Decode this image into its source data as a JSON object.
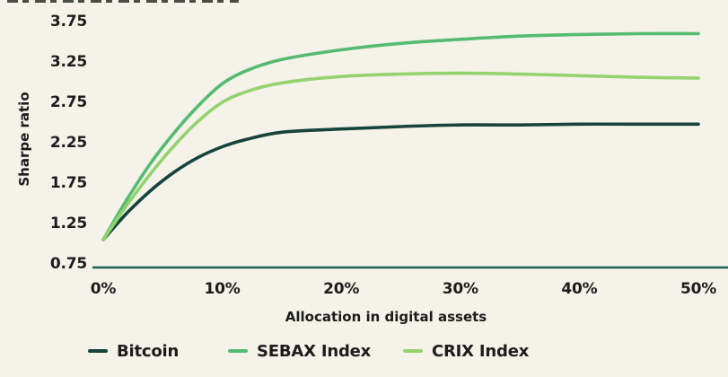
{
  "page": {
    "background": "#f4f2e9",
    "text_color": "#1c1c1c"
  },
  "chart_data": {
    "type": "line",
    "title": "",
    "xlabel": "Allocation in digital assets",
    "ylabel": "Sharpe ratio",
    "xlim": [
      0,
      50
    ],
    "ylim": [
      0.75,
      3.75
    ],
    "grid": false,
    "legend_position": "bottom",
    "axis_color": "#1d6156",
    "x_tick_values": [
      0,
      10,
      20,
      30,
      40,
      50
    ],
    "x_tick_labels": [
      "0%",
      "10%",
      "20%",
      "30%",
      "40%",
      "50%"
    ],
    "y_tick_values": [
      0.75,
      1.25,
      1.75,
      2.25,
      2.75,
      3.25,
      3.75
    ],
    "y_tick_labels": [
      "0.75",
      "1.25",
      "1.75",
      "2.25",
      "2.75",
      "3.25",
      "3.75"
    ],
    "series": [
      {
        "name": "Bitcoin",
        "color": "#16443d",
        "points": [
          [
            0,
            1.05
          ],
          [
            2,
            1.38
          ],
          [
            4,
            1.66
          ],
          [
            6,
            1.89
          ],
          [
            8,
            2.07
          ],
          [
            10,
            2.2
          ],
          [
            12,
            2.29
          ],
          [
            15,
            2.38
          ],
          [
            20,
            2.42
          ],
          [
            25,
            2.45
          ],
          [
            30,
            2.47
          ],
          [
            35,
            2.47
          ],
          [
            40,
            2.48
          ],
          [
            45,
            2.48
          ],
          [
            50,
            2.48
          ]
        ]
      },
      {
        "name": "SEBAX Index",
        "color": "#55bb70",
        "points": [
          [
            0,
            1.05
          ],
          [
            2,
            1.55
          ],
          [
            4,
            2.0
          ],
          [
            6,
            2.38
          ],
          [
            8,
            2.71
          ],
          [
            10,
            2.98
          ],
          [
            12,
            3.14
          ],
          [
            15,
            3.28
          ],
          [
            20,
            3.4
          ],
          [
            25,
            3.48
          ],
          [
            30,
            3.53
          ],
          [
            35,
            3.57
          ],
          [
            40,
            3.59
          ],
          [
            45,
            3.6
          ],
          [
            50,
            3.6
          ]
        ]
      },
      {
        "name": "CRIX Index",
        "color": "#93d36e",
        "points": [
          [
            0,
            1.05
          ],
          [
            2,
            1.48
          ],
          [
            4,
            1.87
          ],
          [
            6,
            2.22
          ],
          [
            8,
            2.52
          ],
          [
            10,
            2.75
          ],
          [
            12,
            2.88
          ],
          [
            15,
            2.99
          ],
          [
            20,
            3.07
          ],
          [
            25,
            3.1
          ],
          [
            30,
            3.11
          ],
          [
            35,
            3.1
          ],
          [
            40,
            3.08
          ],
          [
            45,
            3.06
          ],
          [
            50,
            3.05
          ]
        ]
      }
    ]
  }
}
